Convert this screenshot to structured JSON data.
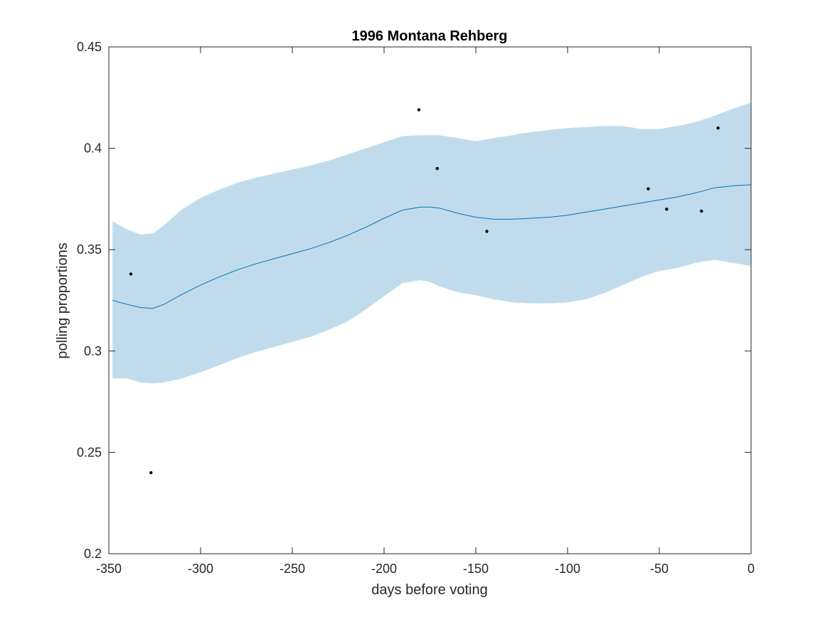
{
  "chart_data": {
    "type": "line",
    "title": "1996 Montana Rehberg",
    "xlabel": "days before voting",
    "ylabel": "polling proportions",
    "xlim": [
      -350,
      0
    ],
    "ylim": [
      0.2,
      0.45
    ],
    "xticks": [
      -350,
      -300,
      -250,
      -200,
      -150,
      -100,
      -50,
      0
    ],
    "xtick_labels": [
      "-350",
      "-300",
      "-250",
      "-200",
      "-150",
      "-100",
      "-50",
      "0"
    ],
    "yticks": [
      0.2,
      0.25,
      0.3,
      0.35,
      0.4,
      0.45
    ],
    "ytick_labels": [
      "0.2",
      "0.25",
      "0.3",
      "0.35",
      "0.4",
      "0.45"
    ],
    "grid": false,
    "colors": {
      "band": "#c0dcec",
      "line": "#0072bd",
      "points": "#000000",
      "axes": "#262626"
    },
    "trend": {
      "x": [
        -348,
        -340,
        -333,
        -326,
        -320,
        -310,
        -300,
        -290,
        -280,
        -270,
        -260,
        -250,
        -240,
        -230,
        -220,
        -210,
        -200,
        -190,
        -180,
        -175,
        -170,
        -160,
        -150,
        -140,
        -130,
        -120,
        -110,
        -100,
        -90,
        -80,
        -70,
        -60,
        -50,
        -40,
        -30,
        -20,
        -10,
        0
      ],
      "mean": [
        0.325,
        0.323,
        0.3215,
        0.321,
        0.323,
        0.328,
        0.3325,
        0.3365,
        0.34,
        0.343,
        0.3455,
        0.348,
        0.3505,
        0.3535,
        0.357,
        0.361,
        0.3655,
        0.3695,
        0.371,
        0.371,
        0.3705,
        0.368,
        0.366,
        0.365,
        0.365,
        0.3655,
        0.366,
        0.367,
        0.3685,
        0.37,
        0.3715,
        0.373,
        0.3745,
        0.376,
        0.378,
        0.3805,
        0.3815,
        0.382
      ],
      "upper": [
        0.364,
        0.36,
        0.3575,
        0.358,
        0.362,
        0.37,
        0.3755,
        0.3795,
        0.383,
        0.3855,
        0.3875,
        0.3895,
        0.3915,
        0.394,
        0.397,
        0.4,
        0.403,
        0.406,
        0.4065,
        0.4065,
        0.4065,
        0.405,
        0.4035,
        0.405,
        0.4065,
        0.408,
        0.409,
        0.41,
        0.4105,
        0.411,
        0.411,
        0.4095,
        0.4095,
        0.411,
        0.413,
        0.416,
        0.4195,
        0.4225
      ],
      "lower": [
        0.2865,
        0.2865,
        0.2845,
        0.284,
        0.2845,
        0.2865,
        0.2895,
        0.293,
        0.2965,
        0.2995,
        0.302,
        0.3045,
        0.307,
        0.3105,
        0.3145,
        0.3205,
        0.327,
        0.3335,
        0.335,
        0.334,
        0.332,
        0.329,
        0.3275,
        0.3255,
        0.324,
        0.3235,
        0.3235,
        0.324,
        0.3255,
        0.3285,
        0.3325,
        0.3365,
        0.3395,
        0.341,
        0.3435,
        0.345,
        0.3435,
        0.342
      ]
    },
    "points": {
      "x": [
        -338,
        -327,
        -181,
        -171,
        -144,
        -56,
        -46,
        -27,
        -18
      ],
      "y": [
        0.338,
        0.24,
        0.419,
        0.39,
        0.359,
        0.38,
        0.37,
        0.369,
        0.41
      ]
    }
  }
}
